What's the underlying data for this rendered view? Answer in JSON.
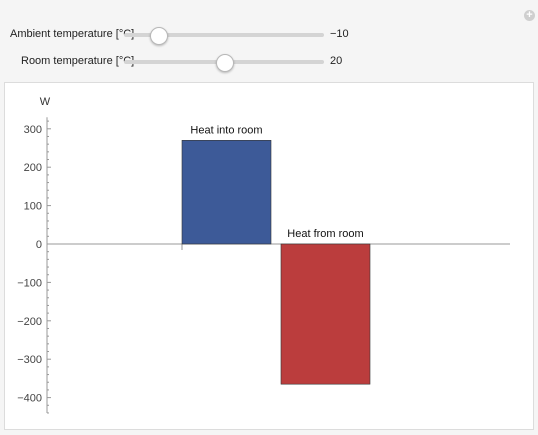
{
  "controls": {
    "ambient": {
      "label": "Ambient temperature [°C]",
      "value": "−10",
      "slider_fraction": 0.17
    },
    "room": {
      "label": "Room temperature [°C]",
      "value": "20",
      "slider_fraction": 0.5
    }
  },
  "icons": {
    "corner": "plus-icon"
  },
  "chart_data": {
    "type": "bar",
    "ylabel": "W",
    "ylim": [
      -440,
      330
    ],
    "yticks": [
      300,
      200,
      100,
      0,
      -100,
      -200,
      -300,
      -400
    ],
    "ytick_labels": [
      "300",
      "200",
      "100",
      "0",
      "−100",
      "−200",
      "−300",
      "−400"
    ],
    "series": [
      {
        "name": "Heat into room",
        "value": 270,
        "color": "#3d5a98"
      },
      {
        "name": "Heat from room",
        "value": -365,
        "color": "#bb3d3d"
      }
    ]
  }
}
